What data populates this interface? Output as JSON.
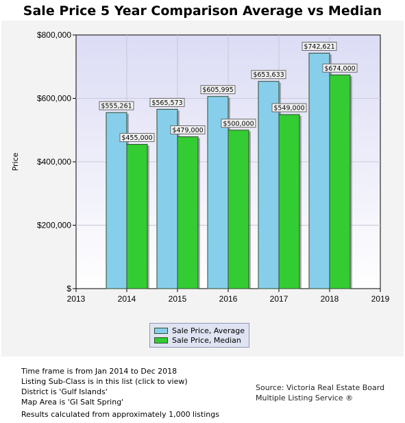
{
  "chart_data": {
    "type": "bar",
    "title": "Sale Price 5 Year Comparison Average vs Median",
    "ylabel": "Price",
    "xlabel": "",
    "x_ticks": [
      "2013",
      "2014",
      "2015",
      "2016",
      "2017",
      "2018",
      "2019"
    ],
    "categories": [
      "2014",
      "2015",
      "2016",
      "2017",
      "2018"
    ],
    "series": [
      {
        "name": "Sale Price, Average",
        "color": "#87ceeb",
        "values": [
          555261,
          565573,
          605995,
          653633,
          742621
        ],
        "labels": [
          "$555,261",
          "$565,573",
          "$605,995",
          "$653,633",
          "$742,621"
        ]
      },
      {
        "name": "Sale Price, Median",
        "color": "#33cc33",
        "values": [
          455000,
          479000,
          500000,
          549000,
          674000
        ],
        "labels": [
          "$455,000",
          "$479,000",
          "$500,000",
          "$549,000",
          "$674,000"
        ]
      }
    ],
    "ylim": [
      0,
      800000
    ],
    "y_ticks": [
      {
        "value": 0,
        "label": "$"
      },
      {
        "value": 200000,
        "label": "$200,000"
      },
      {
        "value": 400000,
        "label": "$400,000"
      },
      {
        "value": 600000,
        "label": "$600,000"
      },
      {
        "value": 800000,
        "label": "$800,000"
      }
    ],
    "grid": true,
    "legend_position": "bottom"
  },
  "notes": {
    "line1": "Time frame is from Jan 2014 to Dec 2018",
    "line2": "Listing Sub-Class is in this list (click to view)",
    "line3": "District is 'Gulf Islands'",
    "line4": "Map Area is 'GI Salt Spring'",
    "line5": "Results calculated from approximately 1,000 listings"
  },
  "source": {
    "line1": "Source: Victoria Real Estate Board",
    "line2": "Multiple Listing Service ®"
  }
}
